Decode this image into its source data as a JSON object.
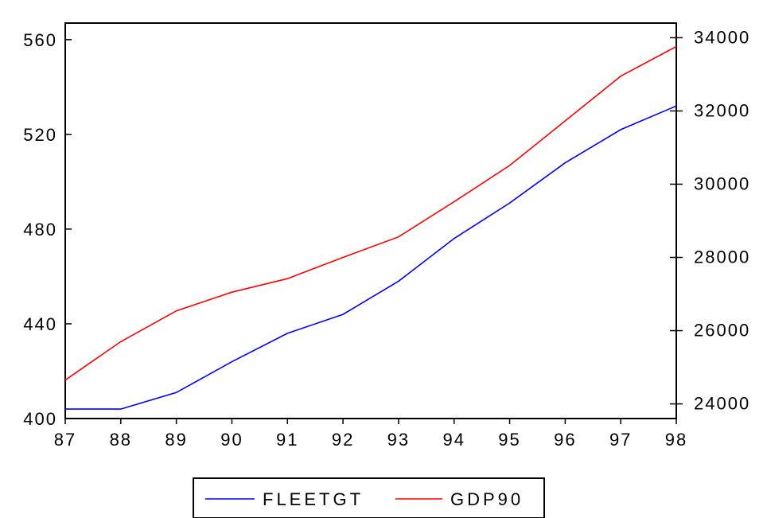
{
  "chart_data": {
    "type": "line",
    "title": "",
    "x": [
      "87",
      "88",
      "89",
      "90",
      "91",
      "92",
      "93",
      "94",
      "95",
      "96",
      "97",
      "98"
    ],
    "left_axis": {
      "min": 400,
      "max": 567,
      "ticks": [
        400,
        440,
        480,
        520,
        560
      ]
    },
    "right_axis": {
      "min": 23600,
      "max": 34400,
      "ticks": [
        24000,
        26000,
        28000,
        30000,
        32000,
        34000
      ]
    },
    "series": [
      {
        "name": "FLEETGT",
        "axis": "left",
        "color": "#0000ff",
        "values": [
          404,
          404,
          411,
          424,
          436,
          444,
          458,
          476,
          491,
          508,
          522,
          532
        ]
      },
      {
        "name": "GDP90",
        "axis": "right",
        "color": "#ff0000",
        "values": [
          24650,
          25700,
          26540,
          27050,
          27420,
          28000,
          28560,
          29520,
          30510,
          31730,
          32950,
          33760
        ]
      }
    ],
    "grid": false,
    "legend_position": "bottom-center"
  }
}
